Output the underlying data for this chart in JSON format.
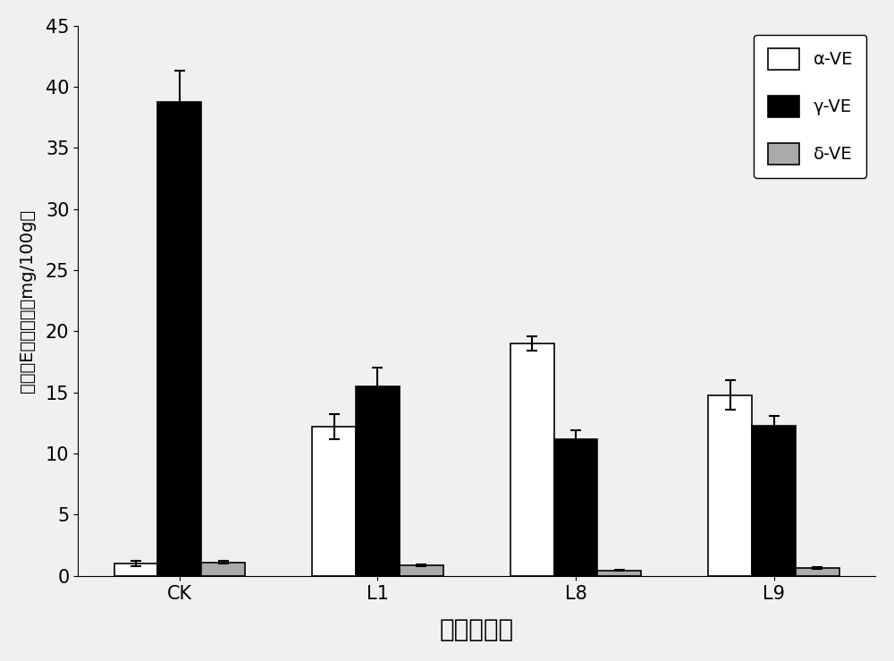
{
  "categories": [
    "CK",
    "L1",
    "L8",
    "L9"
  ],
  "series": {
    "alpha_VE": {
      "label": "α-VE",
      "color": "#ffffff",
      "edgecolor": "#000000",
      "values": [
        1.0,
        12.2,
        19.0,
        14.8
      ],
      "errors": [
        0.2,
        1.0,
        0.6,
        1.2
      ]
    },
    "gamma_VE": {
      "label": "γ-VE",
      "color": "#000000",
      "edgecolor": "#000000",
      "values": [
        38.8,
        15.5,
        11.2,
        12.3
      ],
      "errors": [
        2.5,
        1.5,
        0.7,
        0.8
      ]
    },
    "delta_VE": {
      "label": "δ-VE",
      "color": "#aaaaaa",
      "edgecolor": "#000000",
      "values": [
        1.1,
        0.85,
        0.45,
        0.65
      ],
      "errors": [
        0.1,
        0.08,
        0.05,
        0.07
      ]
    }
  },
  "xlabel": "转基因株系",
  "ylabel": "维生素E组分含量（mg/100g）",
  "ylim": [
    0,
    45
  ],
  "yticks": [
    0,
    5,
    10,
    15,
    20,
    25,
    30,
    35,
    40,
    45
  ],
  "bar_width": 0.22,
  "legend_pos": "upper right",
  "background_color": "#f0f0f0",
  "xlabel_fontsize": 20,
  "ylabel_fontsize": 14,
  "tick_fontsize": 15,
  "legend_fontsize": 14
}
